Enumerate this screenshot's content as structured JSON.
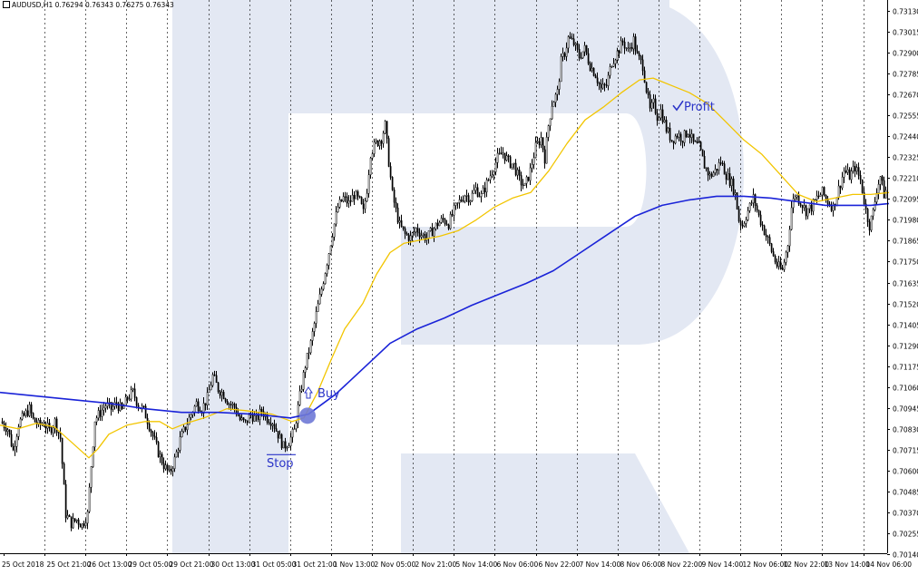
{
  "header": {
    "symbol": "AUDUSD,H1",
    "ohlc": "0.76294 0.76343 0.76275 0.76343"
  },
  "annotations": {
    "buy_label": "Buy",
    "stop_label": "Stop",
    "profit_label": "Profit"
  },
  "colors": {
    "background": "#ffffff",
    "candle": "#000000",
    "ma_fast": "#f2c500",
    "ma_slow": "#1a23d8",
    "annotation": "#2b34c8",
    "watermark": "#e3e8f3",
    "grid": "#000000",
    "entry_marker": "#6f79d6"
  },
  "chart_data": {
    "type": "candlestick",
    "instrument": "AUDUSD",
    "timeframe": "H1",
    "grid": true,
    "ylim": [
      0.70145,
      0.7319
    ],
    "y_ticks": [
      "0.73130",
      "0.73015",
      "0.72900",
      "0.72785",
      "0.72670",
      "0.72555",
      "0.72440",
      "0.72325",
      "0.72210",
      "0.72095",
      "0.71980",
      "0.71865",
      "0.71750",
      "0.71635",
      "0.71520",
      "0.71405",
      "0.71290",
      "0.71175",
      "0.71060",
      "0.70945",
      "0.70830",
      "0.70715",
      "0.70600",
      "0.70485",
      "0.70370",
      "0.70255",
      "0.70140"
    ],
    "x_ticks": [
      "25 Oct 2018",
      "25 Oct 21:00",
      "26 Oct 13:00",
      "29 Oct 05:00",
      "29 Oct 21:00",
      "30 Oct 13:00",
      "31 Oct 05:00",
      "31 Oct 21:00",
      "1 Nov 13:00",
      "2 Nov 05:00",
      "2 Nov 21:00",
      "5 Nov 14:00",
      "6 Nov 06:00",
      "6 Nov 22:00",
      "7 Nov 14:00",
      "8 Nov 06:00",
      "8 Nov 22:00",
      "9 Nov 14:00",
      "12 Nov 06:00",
      "12 Nov 22:00",
      "13 Nov 14:00",
      "14 Nov 06:00"
    ],
    "price_path": [
      [
        0,
        0.7087
      ],
      [
        8,
        0.7083
      ],
      [
        14,
        0.7071
      ],
      [
        20,
        0.7086
      ],
      [
        26,
        0.709
      ],
      [
        32,
        0.7094
      ],
      [
        36,
        0.7088
      ],
      [
        42,
        0.7085
      ],
      [
        48,
        0.7086
      ],
      [
        54,
        0.7082
      ],
      [
        60,
        0.7087
      ],
      [
        66,
        0.7078
      ],
      [
        72,
        0.7036
      ],
      [
        78,
        0.7031
      ],
      [
        84,
        0.7033
      ],
      [
        90,
        0.703
      ],
      [
        96,
        0.7036
      ],
      [
        100,
        0.7063
      ],
      [
        104,
        0.7088
      ],
      [
        110,
        0.7092
      ],
      [
        116,
        0.7096
      ],
      [
        122,
        0.7094
      ],
      [
        128,
        0.7097
      ],
      [
        134,
        0.7093
      ],
      [
        140,
        0.71
      ],
      [
        146,
        0.7103
      ],
      [
        152,
        0.7096
      ],
      [
        158,
        0.7093
      ],
      [
        162,
        0.7088
      ],
      [
        168,
        0.7079
      ],
      [
        174,
        0.707
      ],
      [
        180,
        0.7063
      ],
      [
        186,
        0.7058
      ],
      [
        192,
        0.7066
      ],
      [
        198,
        0.7077
      ],
      [
        204,
        0.7084
      ],
      [
        210,
        0.7091
      ],
      [
        216,
        0.7097
      ],
      [
        222,
        0.7094
      ],
      [
        228,
        0.71
      ],
      [
        234,
        0.7112
      ],
      [
        240,
        0.7105
      ],
      [
        246,
        0.7102
      ],
      [
        252,
        0.7097
      ],
      [
        258,
        0.7095
      ],
      [
        264,
        0.7088
      ],
      [
        270,
        0.7086
      ],
      [
        276,
        0.7091
      ],
      [
        282,
        0.7088
      ],
      [
        288,
        0.7093
      ],
      [
        294,
        0.7089
      ],
      [
        300,
        0.7087
      ],
      [
        306,
        0.708
      ],
      [
        312,
        0.7073
      ],
      [
        318,
        0.7076
      ],
      [
        324,
        0.7082
      ],
      [
        330,
        0.7101
      ],
      [
        336,
        0.7118
      ],
      [
        342,
        0.713
      ],
      [
        348,
        0.7146
      ],
      [
        354,
        0.716
      ],
      [
        360,
        0.7175
      ],
      [
        366,
        0.7191
      ],
      [
        372,
        0.7205
      ],
      [
        378,
        0.721
      ],
      [
        384,
        0.7207
      ],
      [
        390,
        0.7212
      ],
      [
        396,
        0.7208
      ],
      [
        400,
        0.7202
      ],
      [
        404,
        0.7215
      ],
      [
        408,
        0.7235
      ],
      [
        414,
        0.724
      ],
      [
        420,
        0.7243
      ],
      [
        424,
        0.725
      ],
      [
        428,
        0.723
      ],
      [
        432,
        0.7212
      ],
      [
        436,
        0.7203
      ],
      [
        440,
        0.7195
      ],
      [
        446,
        0.719
      ],
      [
        452,
        0.7188
      ],
      [
        458,
        0.7193
      ],
      [
        464,
        0.719
      ],
      [
        470,
        0.7188
      ],
      [
        476,
        0.7192
      ],
      [
        482,
        0.7196
      ],
      [
        488,
        0.7198
      ],
      [
        494,
        0.7196
      ],
      [
        500,
        0.7203
      ],
      [
        506,
        0.7208
      ],
      [
        512,
        0.7212
      ],
      [
        518,
        0.721
      ],
      [
        524,
        0.7215
      ],
      [
        530,
        0.7211
      ],
      [
        536,
        0.7218
      ],
      [
        542,
        0.7225
      ],
      [
        548,
        0.7232
      ],
      [
        554,
        0.7235
      ],
      [
        560,
        0.723
      ],
      [
        566,
        0.7228
      ],
      [
        572,
        0.722
      ],
      [
        578,
        0.7216
      ],
      [
        584,
        0.7225
      ],
      [
        590,
        0.7238
      ],
      [
        596,
        0.7243
      ],
      [
        600,
        0.7232
      ],
      [
        604,
        0.725
      ],
      [
        608,
        0.7262
      ],
      [
        614,
        0.7268
      ],
      [
        618,
        0.7285
      ],
      [
        622,
        0.729
      ],
      [
        626,
        0.7298
      ],
      [
        632,
        0.7295
      ],
      [
        638,
        0.7288
      ],
      [
        644,
        0.7292
      ],
      [
        650,
        0.7283
      ],
      [
        656,
        0.7278
      ],
      [
        662,
        0.727
      ],
      [
        668,
        0.7272
      ],
      [
        674,
        0.7285
      ],
      [
        680,
        0.729
      ],
      [
        686,
        0.7296
      ],
      [
        692,
        0.7291
      ],
      [
        698,
        0.7297
      ],
      [
        702,
        0.7288
      ],
      [
        708,
        0.7283
      ],
      [
        712,
        0.727
      ],
      [
        716,
        0.7258
      ],
      [
        720,
        0.7262
      ],
      [
        724,
        0.7255
      ],
      [
        728,
        0.7258
      ],
      [
        734,
        0.7248
      ],
      [
        740,
        0.7242
      ],
      [
        746,
        0.7245
      ],
      [
        752,
        0.7243
      ],
      [
        758,
        0.7247
      ],
      [
        764,
        0.724
      ],
      [
        770,
        0.7238
      ],
      [
        776,
        0.7228
      ],
      [
        782,
        0.7222
      ],
      [
        788,
        0.7225
      ],
      [
        794,
        0.723
      ],
      [
        800,
        0.7223
      ],
      [
        806,
        0.7218
      ],
      [
        810,
        0.7212
      ],
      [
        814,
        0.7198
      ],
      [
        818,
        0.7195
      ],
      [
        824,
        0.7203
      ],
      [
        830,
        0.721
      ],
      [
        836,
        0.72
      ],
      [
        842,
        0.7192
      ],
      [
        848,
        0.7184
      ],
      [
        852,
        0.7178
      ],
      [
        856,
        0.7173
      ],
      [
        862,
        0.717
      ],
      [
        868,
        0.7185
      ],
      [
        872,
        0.7205
      ],
      [
        876,
        0.7212
      ],
      [
        882,
        0.7208
      ],
      [
        888,
        0.7203
      ],
      [
        894,
        0.7205
      ],
      [
        900,
        0.721
      ],
      [
        906,
        0.7213
      ],
      [
        912,
        0.7208
      ],
      [
        918,
        0.7205
      ],
      [
        924,
        0.7215
      ],
      [
        930,
        0.7225
      ],
      [
        936,
        0.7222
      ],
      [
        942,
        0.7227
      ],
      [
        948,
        0.722
      ],
      [
        954,
        0.7203
      ],
      [
        958,
        0.7195
      ],
      [
        962,
        0.7202
      ],
      [
        966,
        0.7215
      ],
      [
        970,
        0.7222
      ],
      [
        974,
        0.7212
      ],
      [
        978,
        0.7216
      ]
    ],
    "series": [
      {
        "role": "fast-ma",
        "color": "#f2c500",
        "points": [
          [
            0,
            0.7085
          ],
          [
            20,
            0.7083
          ],
          [
            40,
            0.7086
          ],
          [
            60,
            0.7084
          ],
          [
            78,
            0.7076
          ],
          [
            98,
            0.7067
          ],
          [
            108,
            0.7072
          ],
          [
            120,
            0.708
          ],
          [
            140,
            0.7085
          ],
          [
            160,
            0.7087
          ],
          [
            176,
            0.7087
          ],
          [
            190,
            0.7083
          ],
          [
            205,
            0.7086
          ],
          [
            225,
            0.7089
          ],
          [
            250,
            0.7094
          ],
          [
            270,
            0.7093
          ],
          [
            300,
            0.7091
          ],
          [
            322,
            0.7087
          ],
          [
            335,
            0.7089
          ],
          [
            350,
            0.7103
          ],
          [
            365,
            0.7121
          ],
          [
            380,
            0.7138
          ],
          [
            400,
            0.7152
          ],
          [
            415,
            0.7168
          ],
          [
            430,
            0.718
          ],
          [
            445,
            0.7185
          ],
          [
            465,
            0.7187
          ],
          [
            485,
            0.7189
          ],
          [
            505,
            0.7192
          ],
          [
            525,
            0.7198
          ],
          [
            545,
            0.7205
          ],
          [
            565,
            0.721
          ],
          [
            585,
            0.7213
          ],
          [
            605,
            0.7225
          ],
          [
            625,
            0.724
          ],
          [
            645,
            0.7253
          ],
          [
            665,
            0.726
          ],
          [
            685,
            0.7268
          ],
          [
            705,
            0.7275
          ],
          [
            720,
            0.7276
          ],
          [
            740,
            0.7272
          ],
          [
            760,
            0.7268
          ],
          [
            780,
            0.7262
          ],
          [
            800,
            0.7252
          ],
          [
            820,
            0.7242
          ],
          [
            840,
            0.7234
          ],
          [
            860,
            0.7223
          ],
          [
            880,
            0.7212
          ],
          [
            900,
            0.7208
          ],
          [
            920,
            0.721
          ],
          [
            940,
            0.7212
          ],
          [
            960,
            0.7212
          ],
          [
            980,
            0.7213
          ]
        ]
      },
      {
        "role": "slow-ma",
        "color": "#1a23d8",
        "points": [
          [
            0,
            0.7103
          ],
          [
            40,
            0.7101
          ],
          [
            80,
            0.7099
          ],
          [
            120,
            0.7097
          ],
          [
            160,
            0.7094
          ],
          [
            200,
            0.7092
          ],
          [
            240,
            0.7092
          ],
          [
            280,
            0.7091
          ],
          [
            320,
            0.7089
          ],
          [
            340,
            0.7091
          ],
          [
            370,
            0.7102
          ],
          [
            400,
            0.7116
          ],
          [
            430,
            0.713
          ],
          [
            460,
            0.7138
          ],
          [
            490,
            0.7144
          ],
          [
            520,
            0.7151
          ],
          [
            550,
            0.7157
          ],
          [
            580,
            0.7163
          ],
          [
            610,
            0.717
          ],
          [
            640,
            0.718
          ],
          [
            670,
            0.719
          ],
          [
            700,
            0.72
          ],
          [
            730,
            0.7206
          ],
          [
            760,
            0.7209
          ],
          [
            790,
            0.7211
          ],
          [
            820,
            0.7211
          ],
          [
            850,
            0.721
          ],
          [
            880,
            0.7208
          ],
          [
            910,
            0.7206
          ],
          [
            940,
            0.7206
          ],
          [
            960,
            0.7206
          ],
          [
            980,
            0.7207
          ]
        ]
      }
    ],
    "trade": {
      "entry": {
        "x": 339,
        "price": 0.70902
      },
      "stop_price": 0.7069,
      "profit_price": 0.726
    }
  }
}
